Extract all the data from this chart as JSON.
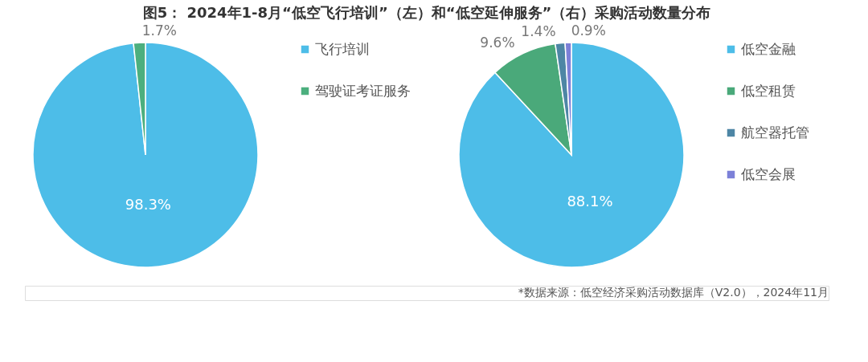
{
  "chart_data": [
    {
      "type": "pie",
      "title": "图5：  2024年1-8月“低空飞行培训”（左）和“低空延伸服务”（右）采购活动数量分布",
      "categories": [
        "飞行培训",
        "驾驶证考证服务"
      ],
      "values": [
        98.3,
        1.7
      ],
      "colors": [
        "#4dbde8",
        "#4caf7e"
      ],
      "value_labels": [
        "98.3%",
        "1.7%"
      ],
      "legend": "right"
    },
    {
      "type": "pie",
      "categories": [
        "低空金融",
        "低空租赁",
        "航空器托管",
        "低空会展"
      ],
      "values": [
        88.1,
        9.6,
        1.4,
        0.9
      ],
      "colors": [
        "#4dbde8",
        "#4aa97a",
        "#4d86a5",
        "#7c80d8"
      ],
      "value_labels": [
        "88.1%",
        "9.6%",
        "1.4%",
        "0.9%"
      ],
      "legend": "right",
      "annotations": [
        "*数据来源：低空经济采购活动数据库（V2.0），2024年11月"
      ]
    }
  ]
}
